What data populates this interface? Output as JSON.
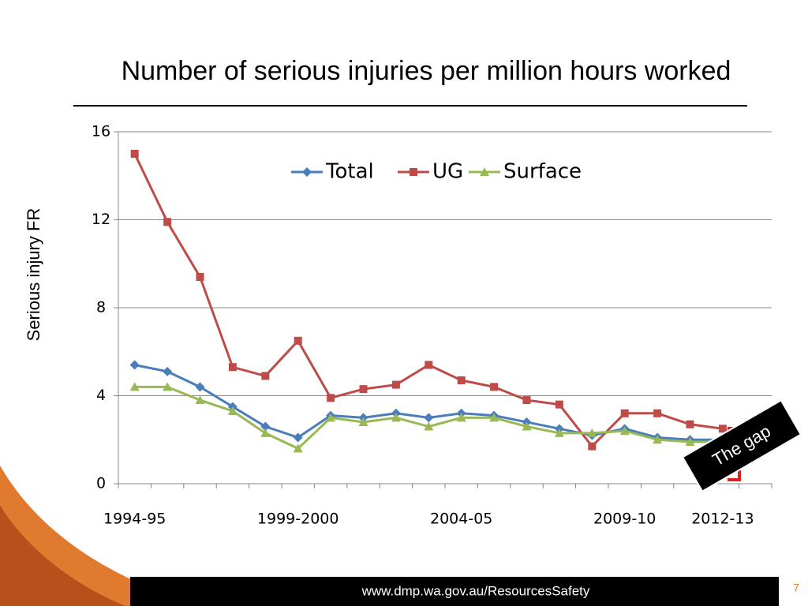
{
  "chart_data": {
    "type": "line",
    "title": "Number of serious injuries per million hours worked",
    "y_label": "Serious injury FR",
    "categories": [
      "1994-95",
      null,
      null,
      null,
      null,
      "1999-2000",
      null,
      null,
      null,
      null,
      "2004-05",
      null,
      null,
      null,
      null,
      "2009-10",
      null,
      null,
      "2012-13",
      null
    ],
    "series": [
      {
        "name": "Total",
        "color": "#4a7ebb",
        "marker": "diamond",
        "values": [
          5.4,
          5.1,
          4.4,
          3.5,
          2.6,
          2.1,
          3.1,
          3.0,
          3.2,
          3.0,
          3.2,
          3.1,
          2.8,
          2.5,
          2.2,
          2.5,
          2.1,
          2.0,
          2.0,
          null
        ]
      },
      {
        "name": "UG",
        "color": "#be4b48",
        "marker": "square",
        "values": [
          15.0,
          11.9,
          9.4,
          5.3,
          4.9,
          6.5,
          3.9,
          4.3,
          4.5,
          5.4,
          4.7,
          4.4,
          3.8,
          3.6,
          1.7,
          3.2,
          3.2,
          2.7,
          2.5,
          null
        ]
      },
      {
        "name": "Surface",
        "color": "#98b954",
        "marker": "triangle",
        "values": [
          4.4,
          4.4,
          3.8,
          3.3,
          2.3,
          1.6,
          3.0,
          2.8,
          3.0,
          2.6,
          3.0,
          3.0,
          2.6,
          2.3,
          2.3,
          2.4,
          2.0,
          1.9,
          1.9,
          null
        ]
      }
    ],
    "ylim": [
      0,
      16
    ],
    "yticks": [
      0,
      4,
      8,
      12,
      16
    ],
    "grid": true,
    "legend": "top",
    "annotations": [
      "The gap"
    ]
  },
  "footer": {
    "url": "www.dmp.wa.gov.au/ResourcesSafety",
    "page": 7
  }
}
